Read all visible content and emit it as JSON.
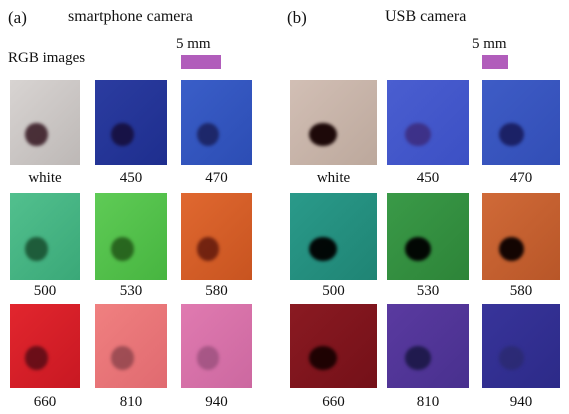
{
  "panels": [
    {
      "label": "(a)",
      "title": "smartphone camera",
      "subtitle": "RGB images",
      "scale_bar": "5 mm",
      "tiles": [
        "white",
        "450",
        "470",
        "500",
        "530",
        "580",
        "660",
        "810",
        "940"
      ]
    },
    {
      "label": "(b)",
      "title": "USB camera",
      "scale_bar": "5 mm",
      "tiles": [
        "white",
        "450",
        "470",
        "500",
        "530",
        "580",
        "660",
        "810",
        "940"
      ]
    }
  ]
}
